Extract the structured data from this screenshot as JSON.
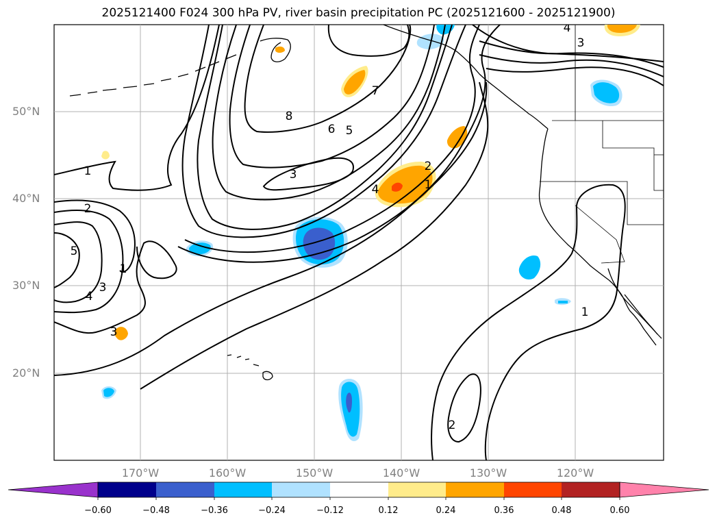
{
  "title": "2025121400 F024 300 hPa PV, river basin precipitation PC (2025121600 - 2025121900)",
  "lat_labels": [
    "50°N",
    "40°N",
    "30°N",
    "20°N"
  ],
  "lon_labels": [
    "170°W",
    "160°W",
    "150°W",
    "140°W",
    "130°W",
    "120°W"
  ],
  "colorbar": {
    "colors": [
      "#9932cc",
      "#00008b",
      "#3a5fcd",
      "#00bfff",
      "#b0e2ff",
      "#ffffff",
      "#ffec8b",
      "#ffa500",
      "#ff4500",
      "#b22222",
      "#ff82ab"
    ],
    "ticks": [
      "−0.60",
      "−0.48",
      "−0.36",
      "−0.24",
      "−0.12",
      "0.12",
      "0.24",
      "0.36",
      "0.48",
      "0.60"
    ]
  },
  "contour_labels": [
    "4",
    "3",
    "8",
    "7",
    "6",
    "5",
    "1",
    "2",
    "3",
    "4",
    "2",
    "1",
    "5",
    "4",
    "3",
    "1",
    "3",
    "1",
    "2"
  ],
  "colors": {
    "land_line": "#000000",
    "grid": "#b0b0b0",
    "pv_contour": "#000000"
  }
}
